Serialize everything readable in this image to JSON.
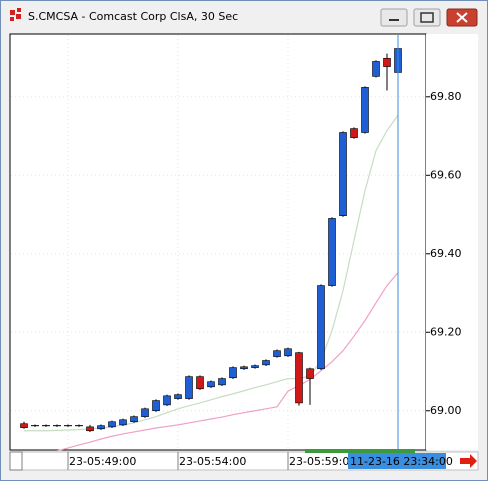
{
  "window_title": "S.CMCSA - Comcast Corp ClsA, 30 Sec",
  "chart_data": {
    "type": "candlestick",
    "categories": [
      null,
      null,
      null,
      null,
      "23-05:49:00",
      null,
      null,
      null,
      null,
      null,
      null,
      null,
      null,
      null,
      "23-05:54:00",
      null,
      null,
      null,
      null,
      null,
      null,
      null,
      null,
      null,
      "23-05:59:00",
      null,
      null,
      null,
      null,
      null,
      null,
      null,
      null,
      null,
      null
    ],
    "open": [
      68.967,
      68.962,
      68.962,
      68.962,
      68.962,
      68.962,
      68.959,
      68.954,
      68.959,
      68.964,
      68.972,
      68.985,
      69.0,
      69.015,
      69.031,
      69.031,
      69.087,
      69.061,
      69.066,
      69.084,
      69.107,
      69.11,
      69.117,
      69.138,
      69.14,
      69.148,
      69.107,
      69.107,
      69.319,
      69.497,
      69.719,
      69.709,
      69.852,
      69.898,
      69.862
    ],
    "high": [
      68.972,
      68.965,
      68.965,
      68.965,
      68.965,
      68.965,
      68.964,
      68.965,
      68.975,
      68.98,
      68.988,
      69.008,
      69.029,
      69.041,
      69.044,
      69.09,
      69.09,
      69.077,
      69.085,
      69.113,
      69.115,
      69.118,
      69.131,
      69.156,
      69.161,
      69.15,
      69.11,
      69.322,
      69.493,
      69.712,
      69.722,
      69.827,
      69.893,
      69.91,
      69.925
    ],
    "low": [
      68.954,
      68.959,
      68.959,
      68.959,
      68.959,
      68.959,
      68.946,
      68.951,
      68.956,
      68.961,
      68.969,
      68.982,
      68.997,
      69.012,
      69.028,
      69.028,
      69.053,
      69.058,
      69.063,
      69.081,
      69.104,
      69.107,
      69.114,
      69.135,
      69.137,
      69.013,
      69.015,
      69.104,
      69.316,
      69.494,
      69.693,
      69.706,
      69.849,
      69.816,
      69.798
    ],
    "close": [
      68.957,
      68.962,
      68.962,
      68.962,
      68.962,
      68.962,
      68.949,
      68.962,
      68.972,
      68.977,
      68.985,
      69.005,
      69.026,
      69.038,
      69.041,
      69.087,
      69.056,
      69.074,
      69.082,
      69.11,
      69.112,
      69.115,
      69.128,
      69.153,
      69.158,
      69.02,
      69.082,
      69.319,
      69.49,
      69.709,
      69.696,
      69.824,
      69.89,
      69.877,
      69.923
    ],
    "up_color": "#1f5fd6",
    "down_color": "#d01818",
    "doji_color": "#000000",
    "overlays": [
      {
        "color": "#c8dcc4",
        "values": [
          68.949,
          68.949,
          68.949,
          68.95,
          68.951,
          68.952,
          68.954,
          68.956,
          68.959,
          68.964,
          68.969,
          68.977,
          68.985,
          68.995,
          69.005,
          69.013,
          69.02,
          69.028,
          69.036,
          69.043,
          69.051,
          69.059,
          69.066,
          69.074,
          69.082,
          69.082,
          69.089,
          69.128,
          69.204,
          69.306,
          69.434,
          69.561,
          69.663,
          69.714,
          69.753
        ]
      },
      {
        "color": "#f0a0c8",
        "values": [
          null,
          null,
          null,
          68.898,
          68.905,
          68.913,
          68.92,
          68.928,
          68.935,
          68.941,
          68.946,
          68.951,
          68.956,
          68.96,
          68.964,
          68.969,
          68.974,
          68.979,
          68.984,
          68.99,
          68.995,
          69.0,
          69.005,
          69.01,
          69.05,
          69.064,
          69.08,
          69.102,
          69.125,
          69.153,
          69.19,
          69.23,
          69.275,
          69.319,
          69.352
        ]
      }
    ],
    "ylim": [
      68.9,
      69.96
    ],
    "yticks": [
      {
        "value": 69.0,
        "label": "69.00"
      },
      {
        "value": 69.2,
        "label": "69.20"
      },
      {
        "value": 69.4,
        "label": "69.40"
      },
      {
        "value": 69.6,
        "label": "69.60"
      },
      {
        "value": 69.8,
        "label": "69.80"
      }
    ],
    "grid": true,
    "cursor_index": 34,
    "cursor_label": "11-23-16 23:34:00",
    "cursor_color": "#3a8ee0"
  }
}
